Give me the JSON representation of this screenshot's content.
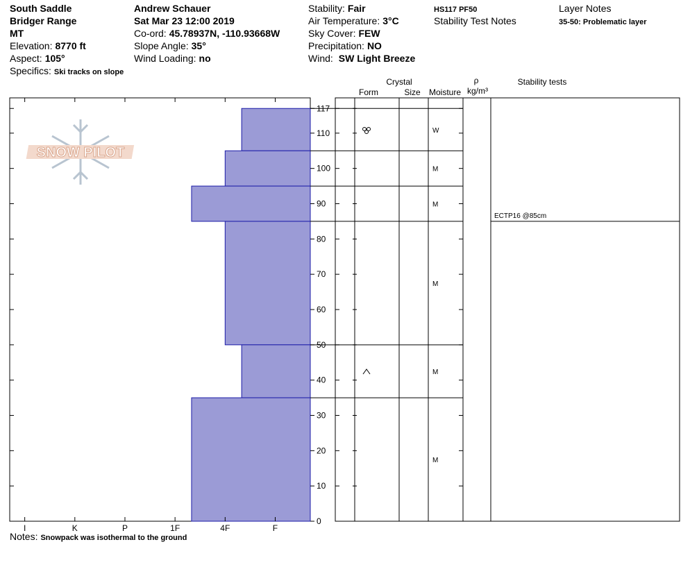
{
  "header": {
    "site": "South Saddle",
    "range": "Bridger Range",
    "state": "MT",
    "elevation": {
      "label": "Elevation:",
      "value": "8770 ft"
    },
    "aspect": {
      "label": "Aspect:",
      "value": "105°"
    },
    "specifics": {
      "label": "Specifics:",
      "value": "Ski tracks on slope"
    },
    "observer": "Andrew Schauer",
    "date": "Sat Mar 23 12:00 2019",
    "coord": {
      "label": "Co-ord:",
      "value": "45.78937N, -110.93668W"
    },
    "slope_angle": {
      "label": "Slope Angle:",
      "value": "35°"
    },
    "wind_loading": {
      "label": "Wind Loading:",
      "value": "no"
    },
    "stability": {
      "label": "Stability:",
      "value": "Fair"
    },
    "air_temperature": {
      "label": "Air Temperature:",
      "value": "3°C"
    },
    "sky_cover": {
      "label": "Sky Cover:",
      "value": "FEW"
    },
    "precipitation": {
      "label": "Precipitation:",
      "value": "NO"
    },
    "wind": {
      "label": "Wind:",
      "value": "SW Light Breeze"
    },
    "hs_pf": "HS117 PF50",
    "stability_test_notes": "Stability Test Notes",
    "layer_notes_title": "Layer Notes",
    "layer_notes": "35-50: Problematic layer"
  },
  "logo": "SNOW PILOT",
  "table_headers": {
    "crystal": "Crystal",
    "form": "Form",
    "size": "Size",
    "moisture": "Moisture",
    "rho": "ρ",
    "density_unit": "kg/m³",
    "stability_tests": "Stability tests"
  },
  "notes": {
    "label": "Notes:",
    "value": "Snowpack was isothermal to the ground"
  },
  "chart_data": {
    "type": "bar",
    "orientation": "horizontal",
    "color": "#9b9bd6",
    "edge_color": "#1c1ca8",
    "layers": [
      {
        "top": 117,
        "bottom": 105,
        "hardness": 1.67,
        "moisture": "W"
      },
      {
        "top": 105,
        "bottom": 95,
        "hardness": 2,
        "moisture": "M"
      },
      {
        "top": 95,
        "bottom": 85,
        "hardness": 2.67,
        "moisture": "M"
      },
      {
        "top": 85,
        "bottom": 50,
        "hardness": 2,
        "moisture": "M"
      },
      {
        "top": 50,
        "bottom": 35,
        "hardness": 1.67,
        "moisture": "M"
      },
      {
        "top": 35,
        "bottom": 0,
        "hardness": 2.67,
        "moisture": "M"
      }
    ],
    "xlim": [
      6.3,
      0.3
    ],
    "xticks": [
      {
        "value": 6,
        "label": "I"
      },
      {
        "value": 5,
        "label": "K"
      },
      {
        "value": 4,
        "label": "P"
      },
      {
        "value": 3,
        "label": "1F"
      },
      {
        "value": 2,
        "label": "4F"
      },
      {
        "value": 1,
        "label": "F"
      }
    ],
    "ylim": [
      0,
      120
    ],
    "yticks": [
      0,
      10,
      20,
      30,
      40,
      50,
      60,
      70,
      80,
      90,
      100,
      110,
      117
    ],
    "stability_tests": [
      {
        "text": "ECTP16 @85cm",
        "depth": 85
      }
    ]
  }
}
